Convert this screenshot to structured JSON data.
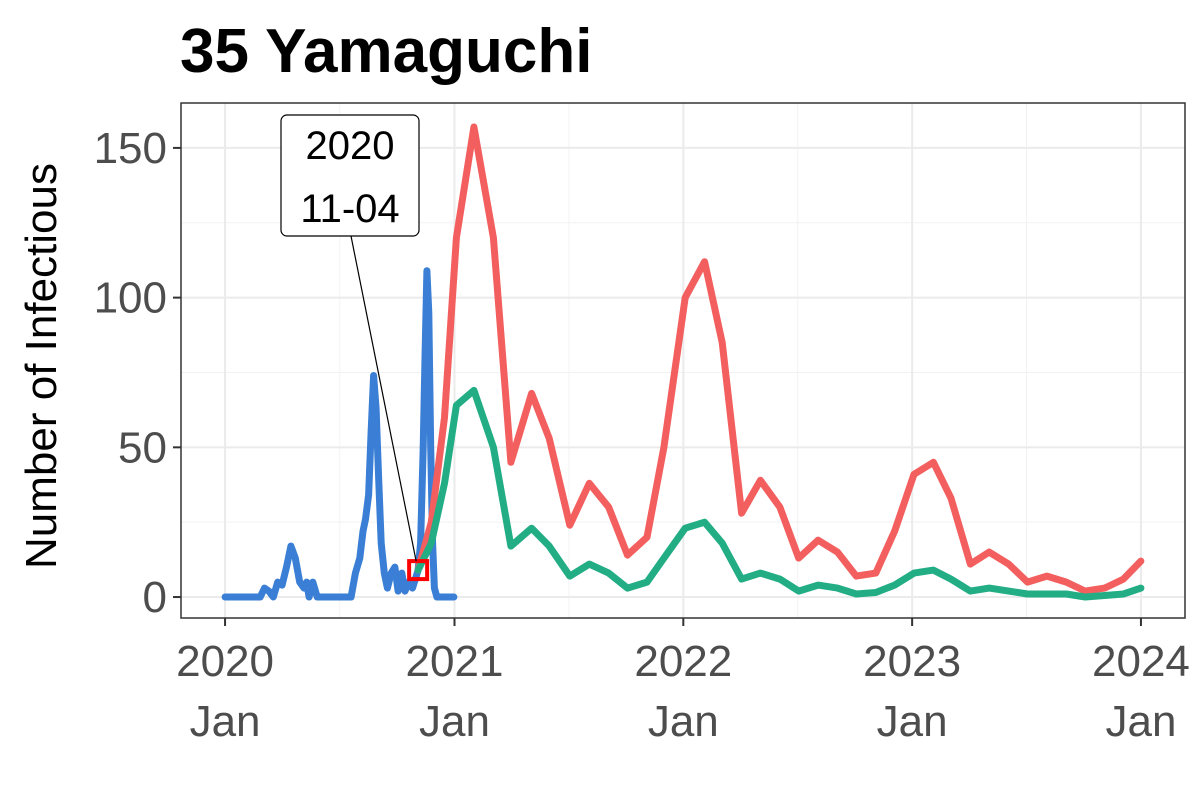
{
  "chart_data": {
    "type": "line",
    "title": "35 Yamaguchi",
    "xlabel": "",
    "ylabel": "Number of Infectious",
    "xlim": [
      "2020-01-01",
      "2024-01-01"
    ],
    "ylim": [
      -7,
      165
    ],
    "grid": true,
    "legend": "none",
    "x_ticks": [
      {
        "date": "2020-01-01",
        "line1": "2020",
        "line2": "Jan"
      },
      {
        "date": "2021-01-01",
        "line1": "2021",
        "line2": "Jan"
      },
      {
        "date": "2022-01-01",
        "line1": "2022",
        "line2": "Jan"
      },
      {
        "date": "2023-01-01",
        "line1": "2023",
        "line2": "Jan"
      },
      {
        "date": "2024-01-01",
        "line1": "2024",
        "line2": "Jan"
      }
    ],
    "y_ticks": [
      0,
      50,
      100,
      150
    ],
    "annotation": {
      "date": "2020-11-04",
      "value": 9,
      "line1": "2020",
      "line2": "11-04"
    },
    "series": [
      {
        "color": "#3a7fd5",
        "points": [
          [
            "2020-01-01",
            0
          ],
          [
            "2020-02-26",
            0
          ],
          [
            "2020-03-04",
            3
          ],
          [
            "2020-03-11",
            2
          ],
          [
            "2020-03-18",
            0
          ],
          [
            "2020-03-25",
            5
          ],
          [
            "2020-04-01",
            4
          ],
          [
            "2020-04-08",
            10
          ],
          [
            "2020-04-15",
            17
          ],
          [
            "2020-04-22",
            13
          ],
          [
            "2020-04-29",
            5
          ],
          [
            "2020-05-06",
            3
          ],
          [
            "2020-05-10",
            5
          ],
          [
            "2020-05-14",
            0
          ],
          [
            "2020-05-20",
            5
          ],
          [
            "2020-05-27",
            0
          ],
          [
            "2020-07-20",
            0
          ],
          [
            "2020-07-27",
            8
          ],
          [
            "2020-08-03",
            13
          ],
          [
            "2020-08-08",
            22
          ],
          [
            "2020-08-12",
            26
          ],
          [
            "2020-08-17",
            34
          ],
          [
            "2020-08-21",
            55
          ],
          [
            "2020-08-25",
            74
          ],
          [
            "2020-08-29",
            63
          ],
          [
            "2020-09-02",
            40
          ],
          [
            "2020-09-06",
            18
          ],
          [
            "2020-09-11",
            8
          ],
          [
            "2020-09-16",
            3
          ],
          [
            "2020-09-22",
            8
          ],
          [
            "2020-09-28",
            10
          ],
          [
            "2020-10-03",
            2
          ],
          [
            "2020-10-09",
            8
          ],
          [
            "2020-10-14",
            2
          ],
          [
            "2020-10-20",
            5
          ],
          [
            "2020-10-26",
            3
          ],
          [
            "2020-11-01",
            7
          ],
          [
            "2020-11-04",
            9
          ],
          [
            "2020-11-08",
            18
          ],
          [
            "2020-11-12",
            50
          ],
          [
            "2020-11-15",
            80
          ],
          [
            "2020-11-18",
            109
          ],
          [
            "2020-11-21",
            95
          ],
          [
            "2020-11-24",
            50
          ],
          [
            "2020-11-27",
            18
          ],
          [
            "2020-11-30",
            3
          ],
          [
            "2020-12-04",
            0
          ],
          [
            "2020-12-31",
            0
          ]
        ]
      },
      {
        "color": "#f35f5f",
        "points": [
          [
            "2020-11-04",
            9
          ],
          [
            "2020-11-25",
            25
          ],
          [
            "2020-12-16",
            60
          ],
          [
            "2021-01-04",
            120
          ],
          [
            "2021-02-01",
            157
          ],
          [
            "2021-03-04",
            120
          ],
          [
            "2021-04-01",
            45
          ],
          [
            "2021-05-04",
            68
          ],
          [
            "2021-06-01",
            53
          ],
          [
            "2021-07-04",
            24
          ],
          [
            "2021-08-04",
            38
          ],
          [
            "2021-09-04",
            30
          ],
          [
            "2021-10-04",
            14
          ],
          [
            "2021-11-04",
            20
          ],
          [
            "2021-12-01",
            50
          ],
          [
            "2022-01-04",
            100
          ],
          [
            "2022-02-04",
            112
          ],
          [
            "2022-03-04",
            85
          ],
          [
            "2022-04-04",
            28
          ],
          [
            "2022-05-04",
            39
          ],
          [
            "2022-06-04",
            30
          ],
          [
            "2022-07-04",
            13
          ],
          [
            "2022-08-04",
            19
          ],
          [
            "2022-09-04",
            15
          ],
          [
            "2022-10-04",
            7
          ],
          [
            "2022-11-04",
            8
          ],
          [
            "2022-12-04",
            22
          ],
          [
            "2023-01-04",
            41
          ],
          [
            "2023-02-04",
            45
          ],
          [
            "2023-03-04",
            33
          ],
          [
            "2023-04-04",
            11
          ],
          [
            "2023-05-04",
            15
          ],
          [
            "2023-06-04",
            11
          ],
          [
            "2023-07-04",
            5
          ],
          [
            "2023-08-04",
            7
          ],
          [
            "2023-09-04",
            5
          ],
          [
            "2023-10-04",
            2
          ],
          [
            "2023-11-04",
            3
          ],
          [
            "2023-12-04",
            6
          ],
          [
            "2024-01-01",
            12
          ]
        ]
      },
      {
        "color": "#22ad85",
        "points": [
          [
            "2020-11-04",
            9
          ],
          [
            "2020-11-25",
            18
          ],
          [
            "2020-12-16",
            38
          ],
          [
            "2021-01-04",
            64
          ],
          [
            "2021-02-01",
            69
          ],
          [
            "2021-03-04",
            50
          ],
          [
            "2021-04-01",
            17
          ],
          [
            "2021-05-04",
            23
          ],
          [
            "2021-06-01",
            17
          ],
          [
            "2021-07-04",
            7
          ],
          [
            "2021-08-04",
            11
          ],
          [
            "2021-09-04",
            8
          ],
          [
            "2021-10-04",
            3
          ],
          [
            "2021-11-04",
            5
          ],
          [
            "2021-12-01",
            13
          ],
          [
            "2022-01-04",
            23
          ],
          [
            "2022-02-04",
            25
          ],
          [
            "2022-03-04",
            18
          ],
          [
            "2022-04-04",
            6
          ],
          [
            "2022-05-04",
            8
          ],
          [
            "2022-06-04",
            6
          ],
          [
            "2022-07-04",
            2
          ],
          [
            "2022-08-04",
            4
          ],
          [
            "2022-09-04",
            3
          ],
          [
            "2022-10-04",
            1
          ],
          [
            "2022-11-04",
            1.5
          ],
          [
            "2022-12-04",
            4
          ],
          [
            "2023-01-04",
            8
          ],
          [
            "2023-02-04",
            9
          ],
          [
            "2023-03-04",
            6
          ],
          [
            "2023-04-04",
            2
          ],
          [
            "2023-05-04",
            3
          ],
          [
            "2023-06-04",
            2
          ],
          [
            "2023-07-04",
            1
          ],
          [
            "2023-08-04",
            1
          ],
          [
            "2023-09-04",
            1
          ],
          [
            "2023-10-04",
            0
          ],
          [
            "2023-11-04",
            0.5
          ],
          [
            "2023-12-04",
            1
          ],
          [
            "2024-01-01",
            3
          ]
        ]
      }
    ]
  }
}
